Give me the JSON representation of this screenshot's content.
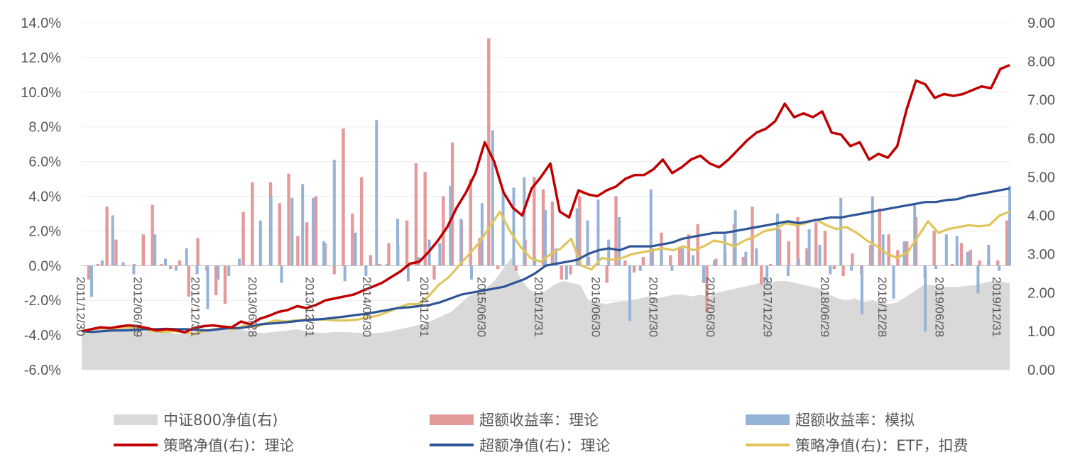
{
  "chart_data": {
    "type": "bar+line",
    "left_axis": {
      "ticks": [
        "14.0%",
        "12.0%",
        "10.0%",
        "8.0%",
        "6.0%",
        "4.0%",
        "2.0%",
        "0.0%",
        "-2.0%",
        "-4.0%",
        "-6.0%"
      ],
      "min": -6,
      "max": 14
    },
    "right_axis": {
      "ticks": [
        "9.00",
        "8.00",
        "7.00",
        "6.00",
        "5.00",
        "4.00",
        "3.00",
        "2.00",
        "1.00",
        "0.00"
      ],
      "min": 0,
      "max": 9
    },
    "x_tick_labels": [
      "2011/12/30",
      "2012/06/29",
      "2012/12/31",
      "2013/06/28",
      "2013/12/31",
      "2014/06/30",
      "2014/12/31",
      "2015/06/30",
      "2015/12/31",
      "2016/06/30",
      "2016/12/30",
      "2017/06/30",
      "2017/12/29",
      "2018/06/29",
      "2018/12/28",
      "2019/06/28",
      "2019/12/31"
    ],
    "grid": "horizontal",
    "legend_position": "bottom",
    "series": [
      {
        "name": "中证800净值(右)",
        "type": "area",
        "axis": "right",
        "color": "#d9d9d9",
        "values": [
          1.0,
          1.05,
          1.08,
          1.05,
          1.1,
          1.12,
          1.08,
          1.0,
          0.98,
          1.0,
          0.98,
          0.92,
          0.95,
          0.98,
          1.0,
          1.02,
          1.05,
          1.1,
          1.08,
          1.02,
          0.98,
          0.95,
          0.97,
          1.0,
          1.02,
          1.05,
          1.0,
          0.98,
          0.95,
          0.97,
          0.98,
          0.97,
          0.96,
          0.95,
          0.95,
          0.96,
          1.0,
          1.05,
          1.1,
          1.15,
          1.2,
          1.3,
          1.4,
          1.5,
          1.7,
          1.9,
          2.0,
          2.1,
          2.3,
          2.6,
          2.9,
          2.4,
          2.1,
          1.95,
          2.05,
          2.2,
          2.3,
          2.25,
          2.2,
          1.8,
          1.75,
          1.7,
          1.75,
          1.78,
          1.8,
          1.85,
          1.9,
          1.85,
          1.9,
          1.95,
          1.95,
          1.9,
          1.95,
          1.9,
          2.0,
          2.05,
          2.1,
          2.15,
          2.2,
          2.25,
          2.25,
          2.3,
          2.3,
          2.25,
          2.2,
          2.15,
          2.1,
          1.95,
          1.85,
          1.8,
          1.85,
          1.75,
          1.8,
          1.75,
          1.7,
          1.75,
          1.9,
          2.05,
          2.2,
          2.2,
          2.15,
          2.15,
          2.15,
          2.18,
          2.2,
          2.25,
          2.3,
          2.28,
          2.25
        ]
      },
      {
        "name": "超额收益率：理论",
        "type": "bar",
        "axis": "left",
        "color": "#e49a9a",
        "values": [
          -0.8,
          0.1,
          3.4,
          1.5,
          0.0,
          0.1,
          1.8,
          3.5,
          0.1,
          -0.2,
          0.3,
          -1.8,
          1.6,
          -0.3,
          -1.7,
          -2.2,
          0.0,
          3.1,
          4.8,
          0.0,
          4.8,
          3.6,
          5.3,
          1.7,
          2.5,
          4.0,
          1.3,
          -0.5,
          7.9,
          3.0,
          5.1,
          0.6,
          0.1,
          1.3,
          1.2,
          2.6,
          5.9,
          5.4,
          -0.8,
          4.0,
          7.1,
          2.6,
          5.0,
          1.6,
          13.1,
          -0.2,
          0.0,
          -0.3,
          1.5,
          5.1,
          4.4,
          3.7,
          -0.8,
          -0.5,
          4.0,
          0.5,
          0.2,
          -1.0,
          4.0,
          0.3,
          -0.4,
          0.5,
          1.0,
          1.9,
          0.6,
          1.0,
          1.8,
          2.4,
          -2.7,
          0.4,
          0.8,
          2.4,
          0.5,
          3.4,
          -1.1,
          0.1,
          2.1,
          1.4,
          2.8,
          1.0,
          2.5,
          2.0,
          -0.2,
          -0.6,
          0.7,
          -0.5,
          1.2,
          3.3,
          1.8,
          0.9,
          1.4,
          2.8,
          -0.7,
          2.0,
          0.0,
          0.1,
          1.3,
          0.9,
          0.3,
          0.4,
          0.3,
          2.6
        ]
      },
      {
        "name": "超额收益率：模拟",
        "type": "bar",
        "axis": "left",
        "color": "#95b3d7",
        "values": [
          -1.8,
          0.3,
          2.9,
          0.2,
          -0.5,
          0.0,
          1.8,
          0.4,
          -0.3,
          1.0,
          -0.5,
          -2.5,
          -0.8,
          -0.6,
          0.4,
          0.0,
          2.6,
          4.0,
          -1.0,
          3.9,
          4.7,
          3.9,
          1.4,
          6.1,
          -0.9,
          1.9,
          -0.6,
          8.4,
          0.1,
          2.7,
          -0.9,
          0.5,
          1.5,
          1.3,
          4.6,
          2.7,
          -0.8,
          3.6,
          7.8,
          4.4,
          4.5,
          5.1,
          0.5,
          3.2,
          1.0,
          -0.8,
          3.3,
          2.6,
          3.8,
          1.5,
          2.8,
          -3.2,
          -0.3,
          4.4,
          1.0,
          -0.3,
          1.0,
          0.6,
          -1.0,
          0.3,
          1.8,
          3.2,
          0.8,
          1.0,
          -1.1,
          3.0,
          -0.6,
          0.4,
          2.1,
          1.2,
          -0.5,
          3.9,
          -0.3,
          -2.8,
          4.0,
          1.8,
          -1.9,
          1.4,
          3.6,
          -3.8,
          -0.2,
          1.8,
          1.7,
          0.8,
          -1.6,
          1.2,
          -0.3,
          4.6
        ]
      },
      {
        "name": "策略净值(右)：理论",
        "type": "line",
        "axis": "right",
        "color": "#c00000",
        "values": [
          1.0,
          1.05,
          1.1,
          1.08,
          1.12,
          1.15,
          1.13,
          1.08,
          1.02,
          1.05,
          1.03,
          0.97,
          1.08,
          1.13,
          1.15,
          1.12,
          1.1,
          1.25,
          1.18,
          1.32,
          1.4,
          1.5,
          1.55,
          1.65,
          1.6,
          1.68,
          1.8,
          1.85,
          1.9,
          1.95,
          2.05,
          2.15,
          2.25,
          2.4,
          2.55,
          2.75,
          2.8,
          3.05,
          3.35,
          3.7,
          4.2,
          4.6,
          5.1,
          5.9,
          5.4,
          4.6,
          4.2,
          4.0,
          4.7,
          5.0,
          5.35,
          4.1,
          3.95,
          4.65,
          4.55,
          4.5,
          4.65,
          4.75,
          4.95,
          5.05,
          5.05,
          5.2,
          5.45,
          5.1,
          5.25,
          5.45,
          5.55,
          5.35,
          5.25,
          5.45,
          5.7,
          5.95,
          6.15,
          6.25,
          6.45,
          6.9,
          6.55,
          6.65,
          6.55,
          6.7,
          6.15,
          6.1,
          5.8,
          5.9,
          5.45,
          5.6,
          5.5,
          5.8,
          6.75,
          7.5,
          7.4,
          7.05,
          7.15,
          7.1,
          7.15,
          7.25,
          7.35,
          7.3,
          7.8,
          7.9
        ]
      },
      {
        "name": "超额净值(右)：理论",
        "type": "line",
        "axis": "right",
        "color": "#2e5597",
        "values": [
          1.0,
          0.98,
          1.0,
          1.02,
          1.02,
          1.03,
          1.05,
          1.05,
          1.06,
          1.05,
          1.05,
          1.03,
          1.02,
          1.05,
          1.08,
          1.08,
          1.12,
          1.18,
          1.2,
          1.22,
          1.25,
          1.28,
          1.3,
          1.32,
          1.35,
          1.38,
          1.42,
          1.45,
          1.5,
          1.55,
          1.6,
          1.62,
          1.65,
          1.68,
          1.75,
          1.85,
          1.95,
          2.0,
          2.05,
          2.1,
          2.15,
          2.25,
          2.35,
          2.5,
          2.7,
          2.75,
          2.8,
          2.85,
          3.0,
          3.1,
          3.15,
          3.1,
          3.2,
          3.2,
          3.2,
          3.25,
          3.3,
          3.4,
          3.45,
          3.5,
          3.55,
          3.55,
          3.6,
          3.65,
          3.7,
          3.75,
          3.8,
          3.85,
          3.8,
          3.85,
          3.9,
          3.95,
          3.95,
          4.0,
          4.05,
          4.1,
          4.15,
          4.2,
          4.25,
          4.3,
          4.35,
          4.35,
          4.4,
          4.42,
          4.5,
          4.55,
          4.6,
          4.65,
          4.7
        ]
      },
      {
        "name": "策略净值(右)：ETF，扣费",
        "type": "line",
        "axis": "right",
        "color": "#e0c55a",
        "values": [
          1.0,
          1.05,
          1.08,
          1.05,
          1.1,
          1.1,
          1.05,
          1.0,
          0.98,
          1.0,
          0.98,
          0.92,
          1.0,
          1.05,
          1.08,
          1.05,
          1.15,
          1.1,
          1.2,
          1.28,
          1.25,
          1.28,
          1.3,
          1.3,
          1.3,
          1.28,
          1.28,
          1.3,
          1.35,
          1.4,
          1.5,
          1.6,
          1.7,
          1.7,
          1.9,
          2.2,
          2.4,
          2.7,
          3.0,
          3.3,
          3.7,
          4.1,
          3.6,
          3.2,
          2.9,
          2.8,
          3.0,
          3.15,
          3.4,
          2.7,
          2.6,
          2.9,
          2.85,
          2.9,
          3.0,
          3.05,
          3.1,
          3.15,
          3.1,
          3.2,
          3.1,
          3.2,
          3.35,
          3.3,
          3.2,
          3.35,
          3.45,
          3.6,
          3.65,
          3.8,
          3.75,
          3.8,
          3.9,
          3.75,
          3.65,
          3.7,
          3.55,
          3.35,
          3.2,
          3.0,
          2.9,
          3.05,
          3.45,
          3.85,
          3.55,
          3.65,
          3.7,
          3.75,
          3.72,
          3.75,
          4.0,
          4.1
        ]
      }
    ]
  }
}
